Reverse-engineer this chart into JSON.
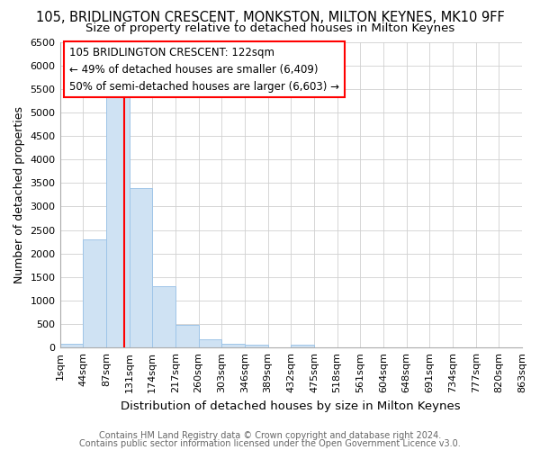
{
  "title": "105, BRIDLINGTON CRESCENT, MONKSTON, MILTON KEYNES, MK10 9FF",
  "subtitle": "Size of property relative to detached houses in Milton Keynes",
  "xlabel": "Distribution of detached houses by size in Milton Keynes",
  "ylabel": "Number of detached properties",
  "footnote1": "Contains HM Land Registry data © Crown copyright and database right 2024.",
  "footnote2": "Contains public sector information licensed under the Open Government Licence v3.0.",
  "bin_labels": [
    "1sqm",
    "44sqm",
    "87sqm",
    "131sqm",
    "174sqm",
    "217sqm",
    "260sqm",
    "303sqm",
    "346sqm",
    "389sqm",
    "432sqm",
    "475sqm",
    "518sqm",
    "561sqm",
    "604sqm",
    "648sqm",
    "691sqm",
    "734sqm",
    "777sqm",
    "820sqm",
    "863sqm"
  ],
  "bar_heights": [
    75,
    2300,
    5450,
    3400,
    1300,
    480,
    185,
    80,
    55,
    0,
    65,
    0,
    0,
    0,
    0,
    0,
    0,
    0,
    0,
    0
  ],
  "bar_color": "#cfe2f3",
  "bar_edge_color": "#9fc5e8",
  "vline_bin_index": 2.795,
  "annotation_text": "105 BRIDLINGTON CRESCENT: 122sqm\n← 49% of detached houses are smaller (6,409)\n50% of semi-detached houses are larger (6,603) →",
  "annotation_box_color": "white",
  "annotation_box_edge": "red",
  "ylim": [
    0,
    6500
  ],
  "yticks": [
    0,
    500,
    1000,
    1500,
    2000,
    2500,
    3000,
    3500,
    4000,
    4500,
    5000,
    5500,
    6000,
    6500
  ],
  "bg_color": "#ffffff",
  "plot_bg_color": "#ffffff",
  "title_fontsize": 10.5,
  "subtitle_fontsize": 9.5,
  "ylabel_fontsize": 9,
  "xlabel_fontsize": 9.5,
  "tick_fontsize": 8,
  "footnote_fontsize": 7,
  "annot_fontsize": 8.5
}
